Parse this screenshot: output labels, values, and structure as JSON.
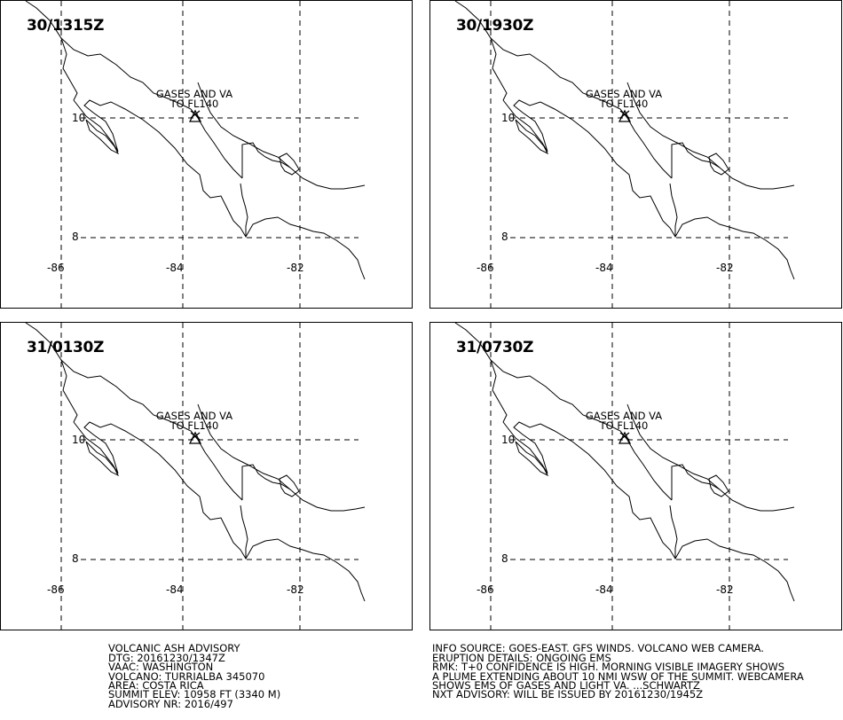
{
  "map": {
    "annotation_line1": "GASES AND VA",
    "annotation_line2": "TO FL140",
    "lat_labels": [
      "10",
      "8"
    ],
    "lon_labels": [
      "-86",
      "-84",
      "-82"
    ],
    "volcano_icon": "volcano-symbol-icon",
    "line_color": "#000000"
  },
  "panels": [
    {
      "time": "30/1315Z"
    },
    {
      "time": "30/1930Z"
    },
    {
      "time": "31/0130Z"
    },
    {
      "time": "31/0730Z"
    }
  ],
  "advisory_left": {
    "lines": [
      "VOLCANIC ASH ADVISORY",
      "DTG: 20161230/1347Z",
      "VAAC: WASHINGTON",
      "VOLCANO: TURRIALBA 345070",
      "AREA: COSTA RICA",
      "SUMMIT ELEV: 10958 FT (3340 M)",
      "ADVISORY NR: 2016/497"
    ]
  },
  "advisory_right": {
    "lines": [
      "INFO SOURCE: GOES-EAST. GFS WINDS. VOLCANO WEB CAMERA.",
      "ERUPTION DETAILS: ONGOING EMS",
      "RMK: T+0 CONFIDENCE IS HIGH. MORNING VISIBLE IMAGERY SHOWS",
      "A PLUME EXTENDING ABOUT 10 NMI WSW OF THE SUMMIT. WEBCAMERA",
      "SHOWS EMS OF GASES AND LIGHT VA. ...SCHWARTZ",
      "NXT ADVISORY: WILL BE ISSUED BY 20161230/1945Z"
    ]
  }
}
